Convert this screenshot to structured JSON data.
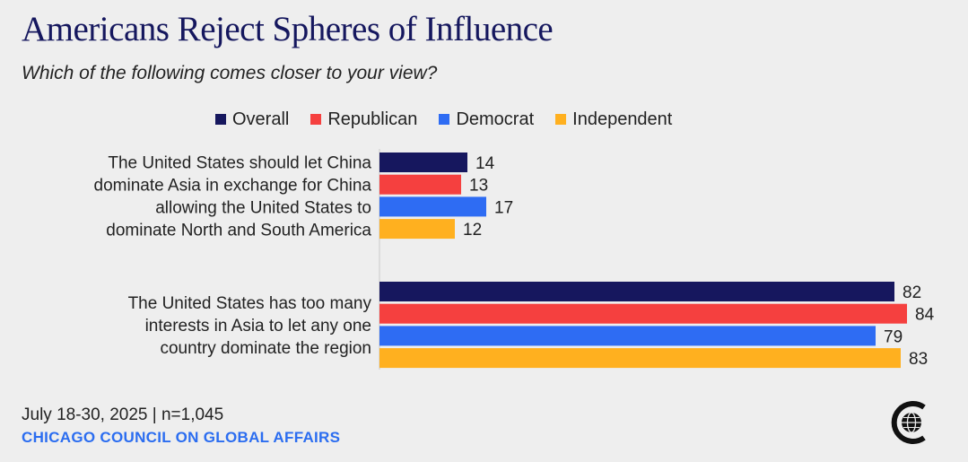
{
  "title": "Americans Reject Spheres of Influence",
  "subtitle": "Which of the following comes closer to your view?",
  "footer": {
    "date_sample": "July 18-30, 2025 | n=1,045",
    "organization": "CHICAGO COUNCIL ON GLOBAL AFFAIRS"
  },
  "colors": {
    "background": "#eeeeee",
    "title": "#15175e",
    "organization": "#2b6df0"
  },
  "icons": {
    "logo": "chicago-council-globe-logo-icon"
  },
  "chart_data": {
    "type": "bar",
    "orientation": "horizontal",
    "categories": [
      [
        "The United States should let China",
        "dominate Asia in exchange for China",
        "allowing the United States to",
        "dominate North and South America"
      ],
      [
        "The United States has too many",
        "interests in Asia to let any one",
        "country dominate the region"
      ]
    ],
    "series": [
      {
        "name": "Overall",
        "color": "#16175e",
        "values": [
          14,
          82
        ]
      },
      {
        "name": "Republican",
        "color": "#f5403f",
        "values": [
          13,
          84
        ]
      },
      {
        "name": "Democrat",
        "color": "#2e6cf3",
        "values": [
          17,
          79
        ]
      },
      {
        "name": "Independent",
        "color": "#ffb01f",
        "values": [
          12,
          83
        ]
      }
    ],
    "xlim": [
      0,
      85
    ],
    "data_labels": true,
    "grid": false,
    "legend_position": "top"
  }
}
